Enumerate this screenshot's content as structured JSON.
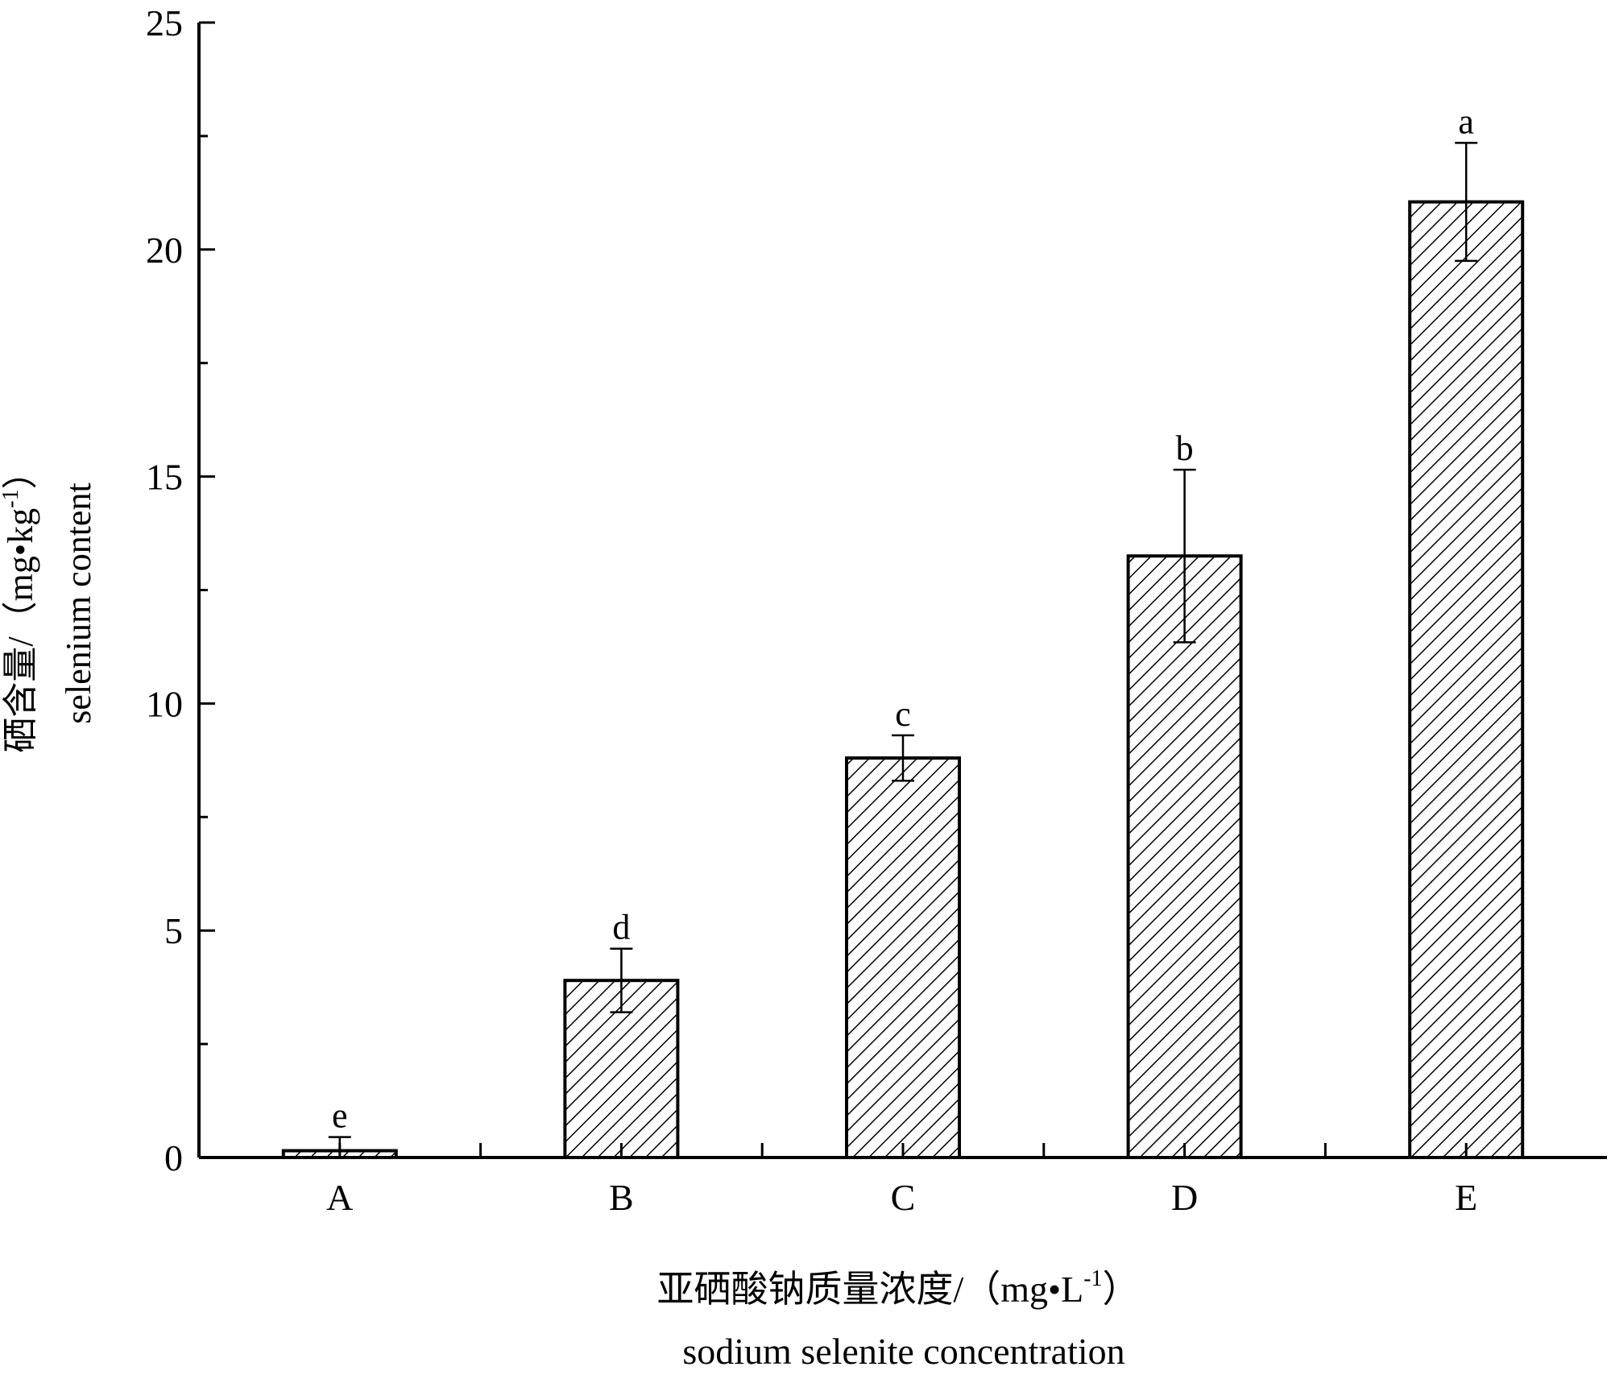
{
  "chart_data": {
    "type": "bar",
    "categories": [
      "A",
      "B",
      "C",
      "D",
      "E"
    ],
    "values": [
      0.15,
      3.9,
      8.8,
      13.25,
      21.05
    ],
    "error": [
      0.3,
      0.7,
      0.5,
      1.9,
      1.3
    ],
    "significance": [
      "e",
      "d",
      "c",
      "b",
      "a"
    ],
    "ylim": [
      0,
      25
    ],
    "yticks": [
      0,
      5,
      10,
      15,
      20,
      25
    ],
    "ylabel": {
      "cn": "硒含量/（mg•kg",
      "sup": "-1",
      "close": "）",
      "en": "selenium content"
    },
    "xlabel": {
      "cn": "亚硒酸钠质量浓度/（mg•L",
      "sup": "-1",
      "close": "）",
      "en": "sodium selenite concentration"
    },
    "bar_fill": "hatched",
    "colors": {
      "stroke": "#000000",
      "background": "#ffffff"
    }
  }
}
